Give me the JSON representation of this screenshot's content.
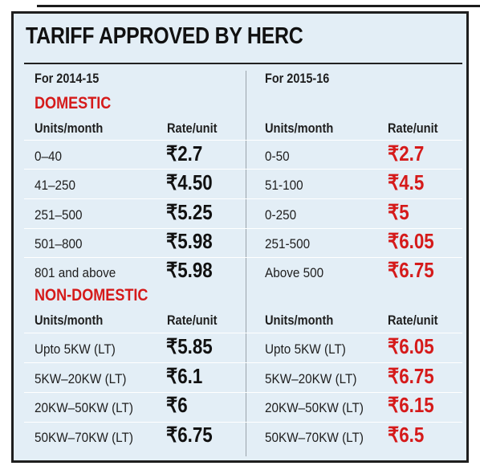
{
  "title": "TARIFF APPROVED BY HERC",
  "periods": {
    "left": "For 2014-15",
    "right": "For 2015-16"
  },
  "domestic": {
    "heading": "DOMESTIC",
    "col_units": "Units/month",
    "col_rate": "Rate/unit",
    "rows": [
      {
        "l_units": "0–40",
        "l_rate": "₹2.7",
        "r_units": "0-50",
        "r_rate": "₹2.7"
      },
      {
        "l_units": "41–250",
        "l_rate": "₹4.50",
        "r_units": "51-100",
        "r_rate": "₹4.5"
      },
      {
        "l_units": "251–500",
        "l_rate": "₹5.25",
        "r_units": "0-250",
        "r_rate": "₹5"
      },
      {
        "l_units": "501–800",
        "l_rate": "₹5.98",
        "r_units": "251-500",
        "r_rate": "₹6.05"
      },
      {
        "l_units": "801 and above",
        "l_rate": "₹5.98",
        "r_units": "Above 500",
        "r_rate": "₹6.75"
      }
    ]
  },
  "non_domestic": {
    "heading": "NON-DOMESTIC",
    "col_units": "Units/month",
    "col_rate": "Rate/unit",
    "rows": [
      {
        "l_units": "Upto 5KW (LT)",
        "l_rate": "₹5.85",
        "r_units": "Upto 5KW (LT)",
        "r_rate": "₹6.05"
      },
      {
        "l_units": "5KW–20KW (LT)",
        "l_rate": "₹6.1",
        "r_units": "5KW–20KW (LT)",
        "r_rate": "₹6.75"
      },
      {
        "l_units": "20KW–50KW (LT)",
        "l_rate": "₹6",
        "r_units": "20KW–50KW (LT)",
        "r_rate": "₹6.15"
      },
      {
        "l_units": "50KW–70KW (LT)",
        "l_rate": "₹6.75",
        "r_units": "50KW–70KW (LT)",
        "r_rate": "₹6.5"
      }
    ]
  },
  "colors": {
    "background": "#e3eef6",
    "new_rate": "#d51a1a",
    "old_rate": "#111111"
  }
}
